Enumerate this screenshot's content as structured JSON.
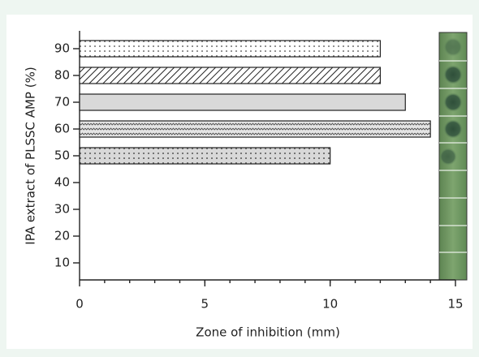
{
  "chart_data": {
    "type": "hbar",
    "x_label": "Zone of inhibition (mm)",
    "y_label": "IPA extract of PLSSC AMP (%)",
    "categories": [
      "10",
      "20",
      "30",
      "40",
      "50",
      "60",
      "70",
      "80",
      "90"
    ],
    "values": [
      null,
      null,
      null,
      null,
      10,
      14,
      13,
      12,
      12
    ],
    "xlim": [
      0,
      15
    ],
    "xticks": [
      0,
      5,
      10,
      15
    ]
  }
}
